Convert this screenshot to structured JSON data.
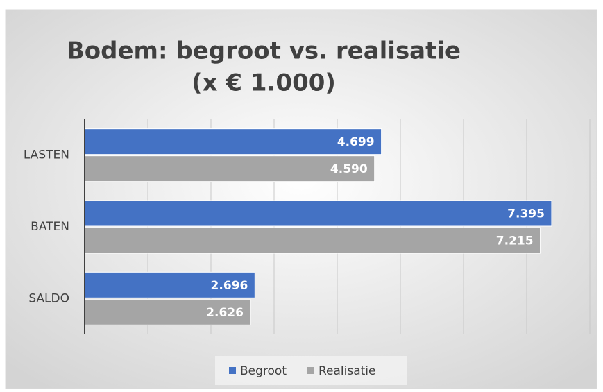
{
  "chart_data": {
    "type": "hbar",
    "title": [
      "Bodem: begroot vs. realisatie",
      "(x € 1.000)"
    ],
    "categories": [
      "LASTEN",
      "BATEN",
      "SALDO"
    ],
    "series": [
      {
        "name": "Begroot",
        "color": "#4472c4",
        "values": [
          4699,
          7395,
          2696
        ],
        "value_labels": [
          "4.699",
          "7.395",
          "2.696"
        ]
      },
      {
        "name": "Realisatie",
        "color": "#a5a5a5",
        "values": [
          4590,
          7215,
          2626
        ],
        "value_labels": [
          "4.590",
          "7.215",
          "2.626"
        ]
      }
    ],
    "xlim": [
      0,
      8000
    ],
    "xticks": [
      0,
      1000,
      2000,
      3000,
      4000,
      5000,
      6000,
      7000,
      8000
    ],
    "grid": true,
    "legend": "bottom"
  }
}
